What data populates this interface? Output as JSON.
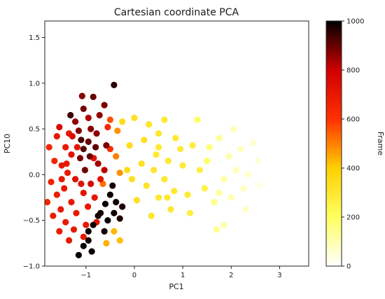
{
  "chart_data": {
    "type": "scatter",
    "title": "Cartesian coordinate PCA",
    "xlabel": "PC1",
    "ylabel": "PC10",
    "xlim": [
      -1.85,
      3.6
    ],
    "ylim": [
      -1.0,
      1.68
    ],
    "x_ticks": [
      -1,
      0,
      1,
      2,
      3
    ],
    "y_ticks": [
      -1.0,
      -0.5,
      0.0,
      0.5,
      1.0,
      1.5
    ],
    "x_tick_labels": [
      "−1",
      "0",
      "1",
      "2",
      "3"
    ],
    "y_tick_labels": [
      "−1.0",
      "−0.5",
      "0.0",
      "0.5",
      "1.0",
      "1.5"
    ],
    "grid": false,
    "colorbar": {
      "label": "Frame",
      "range": [
        0,
        1000
      ],
      "ticks": [
        0,
        200,
        400,
        600,
        800,
        1000
      ],
      "tick_labels": [
        "0",
        "200",
        "400",
        "600",
        "800",
        "1000"
      ],
      "colormap": "hot_r",
      "colormap_stops": [
        [
          0.0,
          "#ffffff"
        ],
        [
          0.2,
          "#ffff60"
        ],
        [
          0.4,
          "#ffd000"
        ],
        [
          0.6,
          "#ff3000"
        ],
        [
          0.8,
          "#d00000"
        ],
        [
          1.0,
          "#000000"
        ]
      ]
    },
    "points": [
      [
        -0.42,
        0.98,
        960
      ],
      [
        -1.08,
        0.86,
        870
      ],
      [
        -0.85,
        0.85,
        900
      ],
      [
        -0.62,
        0.76,
        880
      ],
      [
        -1.32,
        0.65,
        940
      ],
      [
        -1.05,
        0.72,
        890
      ],
      [
        -0.72,
        0.65,
        860
      ],
      [
        -1.22,
        0.58,
        860
      ],
      [
        -0.95,
        0.62,
        830
      ],
      [
        -1.15,
        0.48,
        870
      ],
      [
        -1.55,
        0.52,
        760
      ],
      [
        -1.6,
        0.42,
        700
      ],
      [
        -0.9,
        0.5,
        870
      ],
      [
        -1.28,
        0.42,
        750
      ],
      [
        -0.78,
        0.45,
        860
      ],
      [
        -1.1,
        0.38,
        930
      ],
      [
        -0.95,
        0.36,
        900
      ],
      [
        -1.42,
        0.3,
        700
      ],
      [
        -1.05,
        0.28,
        920
      ],
      [
        -0.8,
        0.3,
        910
      ],
      [
        -0.58,
        0.32,
        880
      ],
      [
        -1.3,
        0.22,
        720
      ],
      [
        -1.12,
        0.18,
        880
      ],
      [
        -0.92,
        0.2,
        900
      ],
      [
        -1.65,
        0.15,
        650
      ],
      [
        -1.5,
        0.1,
        700
      ],
      [
        -0.75,
        0.12,
        840
      ],
      [
        -1.02,
        0.05,
        890
      ],
      [
        -1.38,
        0.02,
        700
      ],
      [
        -0.62,
        0.05,
        820
      ],
      [
        -0.55,
        0.52,
        640
      ],
      [
        -0.5,
        0.28,
        620
      ],
      [
        -0.7,
        -0.05,
        720
      ],
      [
        -1.22,
        -0.05,
        740
      ],
      [
        -1.72,
        -0.08,
        660
      ],
      [
        -0.9,
        -0.1,
        760
      ],
      [
        -1.45,
        -0.15,
        700
      ],
      [
        -1.6,
        -0.22,
        680
      ],
      [
        -1.05,
        -0.2,
        720
      ],
      [
        -0.82,
        -0.25,
        710
      ],
      [
        -1.3,
        -0.3,
        700
      ],
      [
        -1.52,
        -0.38,
        690
      ],
      [
        -0.96,
        -0.35,
        700
      ],
      [
        -1.2,
        -0.42,
        700
      ],
      [
        -1.68,
        -0.45,
        680
      ],
      [
        -1.42,
        -0.52,
        690
      ],
      [
        -1.0,
        -0.55,
        700
      ],
      [
        -1.25,
        -0.6,
        700
      ],
      [
        -0.78,
        -0.52,
        720
      ],
      [
        -1.55,
        -0.62,
        690
      ],
      [
        -1.05,
        -0.68,
        700
      ],
      [
        -1.35,
        -0.72,
        700
      ],
      [
        -1.8,
        -0.3,
        660
      ],
      [
        -1.76,
        0.3,
        650
      ],
      [
        -1.35,
        0.45,
        700
      ],
      [
        -1.18,
        0.3,
        710
      ],
      [
        -0.84,
        0.18,
        720
      ],
      [
        -1.5,
        -0.05,
        700
      ],
      [
        -1.1,
        -0.1,
        720
      ],
      [
        -1.4,
        0.12,
        700
      ],
      [
        -0.45,
        -0.12,
        980
      ],
      [
        -0.5,
        -0.22,
        990
      ],
      [
        -0.38,
        -0.3,
        980
      ],
      [
        -0.6,
        -0.32,
        990
      ],
      [
        -0.42,
        -0.42,
        985
      ],
      [
        -0.7,
        -0.42,
        980
      ],
      [
        -0.55,
        -0.5,
        990
      ],
      [
        -0.3,
        -0.48,
        970
      ],
      [
        -0.85,
        -0.55,
        980
      ],
      [
        -0.62,
        -0.62,
        980
      ],
      [
        -0.75,
        -0.45,
        975
      ],
      [
        -0.95,
        -0.62,
        990
      ],
      [
        -0.25,
        -0.35,
        970
      ],
      [
        -1.05,
        -0.78,
        990
      ],
      [
        -0.88,
        -0.84,
        990
      ],
      [
        -1.15,
        -0.88,
        995
      ],
      [
        -0.95,
        -0.72,
        985
      ],
      [
        -0.5,
        0.6,
        560
      ],
      [
        -0.35,
        0.48,
        480
      ],
      [
        -0.38,
        0.2,
        500
      ],
      [
        -0.3,
        0.02,
        480
      ],
      [
        -0.42,
        -0.62,
        430
      ],
      [
        -0.3,
        -0.72,
        420
      ],
      [
        -0.58,
        -0.75,
        440
      ],
      [
        -0.65,
        -0.1,
        520
      ],
      [
        -0.25,
        0.58,
        350
      ],
      [
        0.0,
        0.62,
        330
      ],
      [
        0.3,
        0.55,
        320
      ],
      [
        0.62,
        0.6,
        300
      ],
      [
        0.5,
        0.45,
        310
      ],
      [
        0.2,
        0.38,
        330
      ],
      [
        -0.1,
        0.32,
        340
      ],
      [
        0.85,
        0.4,
        300
      ],
      [
        0.45,
        0.22,
        300
      ],
      [
        0.15,
        0.12,
        330
      ],
      [
        0.7,
        0.15,
        300
      ],
      [
        0.4,
        0.05,
        310
      ],
      [
        1.0,
        0.1,
        290
      ],
      [
        0.62,
        -0.05,
        300
      ],
      [
        0.25,
        -0.12,
        320
      ],
      [
        0.82,
        -0.18,
        300
      ],
      [
        0.5,
        -0.25,
        300
      ],
      [
        0.05,
        -0.28,
        330
      ],
      [
        1.1,
        -0.22,
        290
      ],
      [
        0.75,
        -0.38,
        300
      ],
      [
        0.35,
        -0.45,
        310
      ],
      [
        1.2,
        0.32,
        280
      ],
      [
        1.35,
        0.05,
        270
      ],
      [
        1.15,
        -0.42,
        270
      ],
      [
        1.3,
        0.6,
        200
      ],
      [
        -0.15,
        0.05,
        350
      ],
      [
        0.5,
        0.3,
        300
      ],
      [
        -0.05,
        -0.05,
        340
      ],
      [
        0.95,
        0.28,
        290
      ],
      [
        0.68,
        -0.25,
        300
      ],
      [
        1.45,
        -0.15,
        260
      ],
      [
        1.55,
        0.3,
        170
      ],
      [
        1.75,
        0.4,
        140
      ],
      [
        1.95,
        0.2,
        110
      ],
      [
        2.2,
        0.28,
        80
      ],
      [
        2.45,
        0.35,
        60
      ],
      [
        2.1,
        0.05,
        90
      ],
      [
        1.85,
        -0.05,
        120
      ],
      [
        2.35,
        0.0,
        70
      ],
      [
        1.65,
        -0.3,
        150
      ],
      [
        2.0,
        -0.25,
        100
      ],
      [
        2.3,
        -0.38,
        70
      ],
      [
        1.85,
        -0.55,
        110
      ],
      [
        1.75,
        -0.2,
        130
      ],
      [
        2.6,
        -0.12,
        40
      ],
      [
        1.7,
        -0.6,
        140
      ],
      [
        2.05,
        0.5,
        90
      ],
      [
        1.5,
        0.15,
        200
      ],
      [
        2.55,
        0.15,
        50
      ],
      [
        2.25,
        -0.15,
        80
      ]
    ]
  }
}
